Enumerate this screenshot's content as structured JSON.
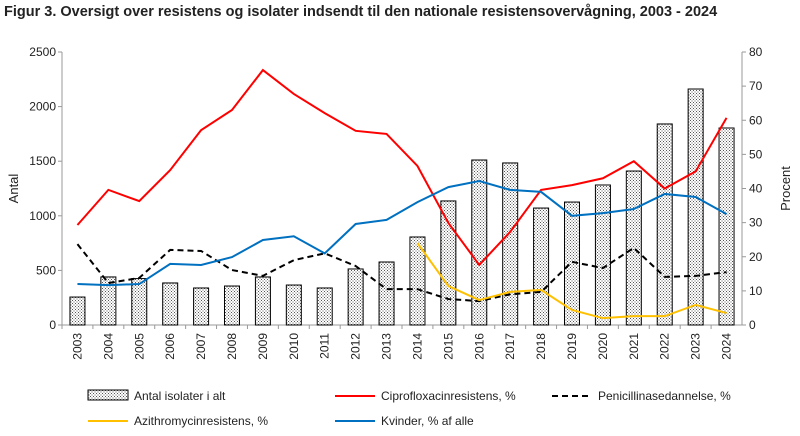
{
  "chart_data": {
    "type": "bar+line",
    "title": "Figur 3. Oversigt over resistens  og isolater indsendt til den nationale resistensovervågning,  2003 - 2024",
    "ylabel": "Antal",
    "y2label": "Procent",
    "ylim": [
      0,
      2500
    ],
    "y2lim": [
      0,
      80
    ],
    "yticks": [
      "0",
      "500",
      "1000",
      "1500",
      "2000",
      "2500"
    ],
    "y2ticks": [
      "0",
      "10",
      "20",
      "30",
      "40",
      "50",
      "60",
      "70",
      "80"
    ],
    "categories": [
      "2003",
      "2004",
      "2005",
      "2006",
      "2007",
      "2008",
      "2009",
      "2010",
      "2011",
      "2012",
      "2013",
      "2014",
      "2015",
      "2016",
      "2017",
      "2018",
      "2019",
      "2020",
      "2021",
      "2022",
      "2023",
      "2024"
    ],
    "bars": {
      "name": "Antal isolater i alt",
      "values": [
        256,
        440,
        425,
        385,
        339,
        357,
        440,
        366,
        339,
        513,
        577,
        806,
        1136,
        1511,
        1484,
        1071,
        1126,
        1282,
        1410,
        1841,
        2161,
        1804
      ]
    },
    "series": [
      {
        "name": "Ciprofloxacinresistens, %",
        "color": "#ff0000",
        "dash": false,
        "values": [
          29.3,
          39.6,
          36.3,
          45.4,
          57.1,
          63,
          74.7,
          67.7,
          62.1,
          56.9,
          56,
          46.6,
          29.9,
          17.6,
          27.3,
          39.6,
          41,
          43,
          48,
          40,
          45,
          60.7
        ]
      },
      {
        "name": "Penicillinasedannelse, %",
        "color": "#000000",
        "dash": true,
        "values": [
          23.7,
          12.3,
          13.8,
          22,
          21.7,
          16.1,
          14.4,
          19,
          21,
          17.3,
          10.5,
          10.5,
          7.6,
          7,
          9,
          9.7,
          18.5,
          16.7,
          22.6,
          14.1,
          14.4,
          15.5
        ]
      },
      {
        "name": "Azithromycinresistens, %",
        "color": "#ffc000",
        "dash": false,
        "values": [
          null,
          null,
          null,
          null,
          null,
          null,
          null,
          null,
          null,
          null,
          null,
          24,
          11.4,
          7.3,
          9.7,
          10.3,
          4.4,
          2,
          2.6,
          2.6,
          5.9,
          3.5
        ]
      },
      {
        "name": "Kvinder, % af alle",
        "color": "#0070c0",
        "dash": false,
        "values": [
          12,
          11.7,
          12,
          17.9,
          17.6,
          19.9,
          24.9,
          26,
          21,
          29.6,
          30.8,
          36,
          40.4,
          42.2,
          39.6,
          39,
          32,
          32.8,
          34,
          38.4,
          37.5,
          32.5
        ]
      }
    ],
    "grid": false,
    "legend": "bottom"
  }
}
